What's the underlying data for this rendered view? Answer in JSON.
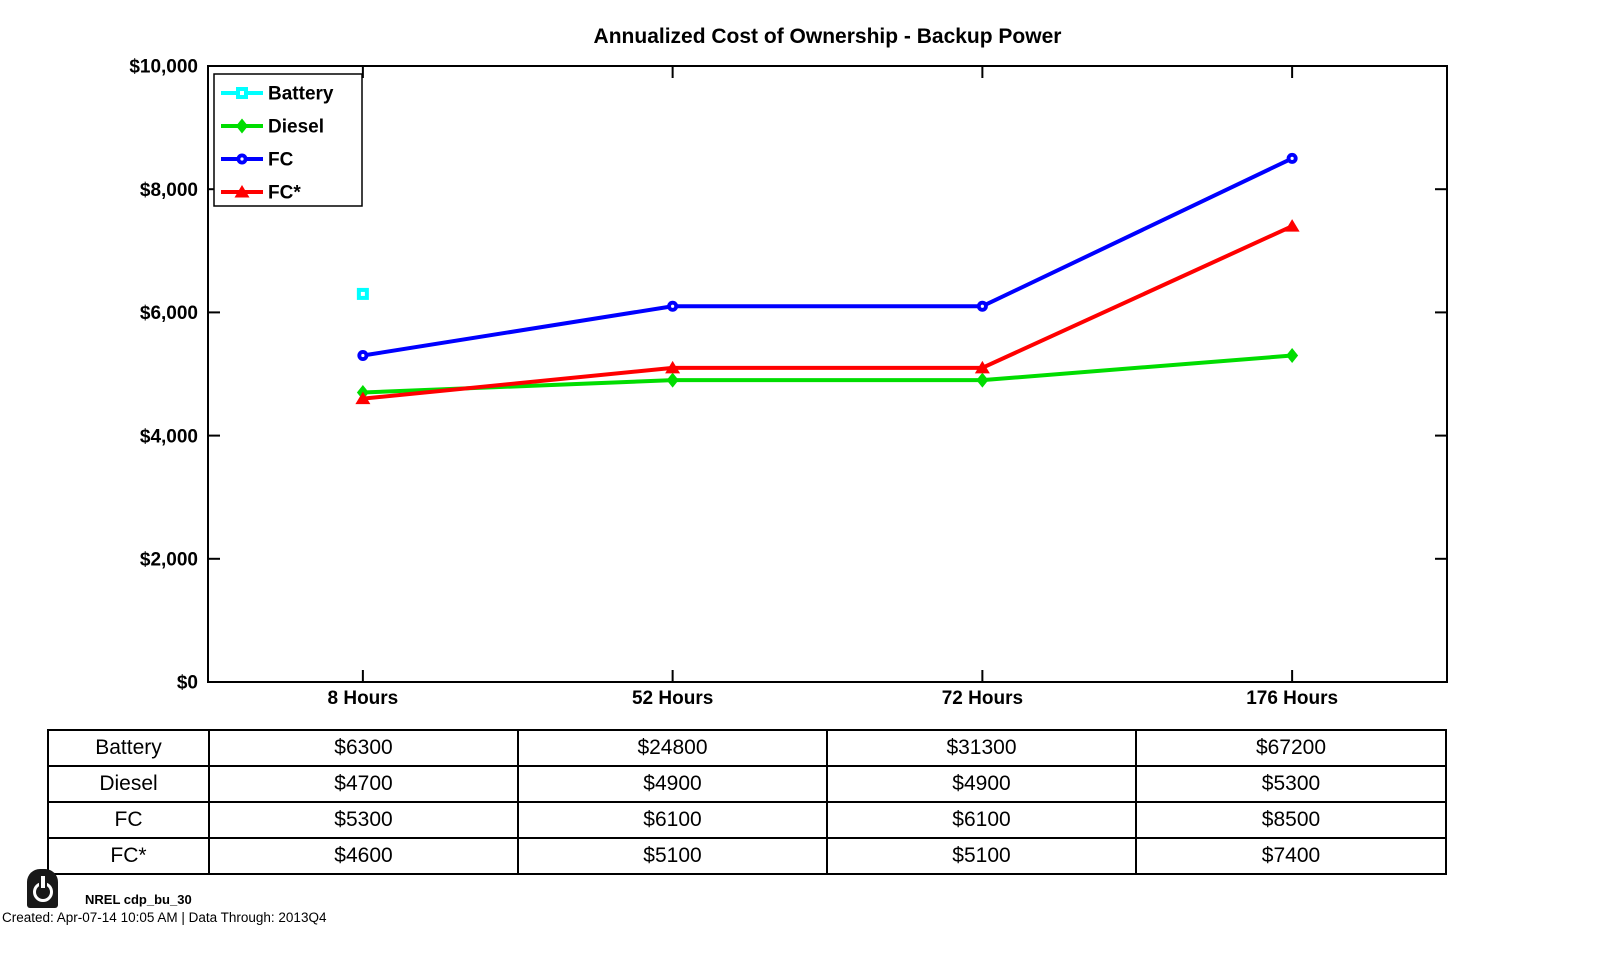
{
  "title": "Annualized Cost of Ownership - Backup Power",
  "chart_data": {
    "type": "line",
    "title": "Annualized Cost of Ownership - Backup Power",
    "categories": [
      "8 Hours",
      "52 Hours",
      "72 Hours",
      "176 Hours"
    ],
    "series": [
      {
        "name": "Battery",
        "color": "#00FFFF",
        "marker": "square",
        "values": [
          6300,
          24800,
          31300,
          67200
        ]
      },
      {
        "name": "Diesel",
        "color": "#00DD00",
        "marker": "diamond",
        "values": [
          4700,
          4900,
          4900,
          5300
        ]
      },
      {
        "name": "FC",
        "color": "#0000FF",
        "marker": "circle",
        "values": [
          5300,
          6100,
          6100,
          8500
        ]
      },
      {
        "name": "FC*",
        "color": "#FF0000",
        "marker": "triangle",
        "values": [
          4600,
          5100,
          5100,
          7400
        ]
      }
    ],
    "xlabel": "",
    "ylabel": "",
    "ylim": [
      0,
      10000
    ],
    "yticks": [
      {
        "value": 0,
        "label": "$0"
      },
      {
        "value": 2000,
        "label": "$2,000"
      },
      {
        "value": 4000,
        "label": "$4,000"
      },
      {
        "value": 6000,
        "label": "$6,000"
      },
      {
        "value": 8000,
        "label": "$8,000"
      },
      {
        "value": 10000,
        "label": "$10,000"
      }
    ],
    "grid": false,
    "legend_position": "top-left",
    "clip_note": "values above ylim are not drawn on the plot"
  },
  "table": {
    "rows": [
      {
        "label": "Battery",
        "values": [
          "$6300",
          "$24800",
          "$31300",
          "$67200"
        ]
      },
      {
        "label": "Diesel",
        "values": [
          "$4700",
          "$4900",
          "$4900",
          "$5300"
        ]
      },
      {
        "label": "FC",
        "values": [
          "$5300",
          "$6100",
          "$6100",
          "$8500"
        ]
      },
      {
        "label": "FC*",
        "values": [
          "$4600",
          "$5100",
          "$5100",
          "$7400"
        ]
      }
    ]
  },
  "footer": {
    "power_icon": "power",
    "source_label": "NREL cdp_bu_30",
    "created_line": "Created: Apr-07-14 10:05 AM | Data Through: 2013Q4"
  },
  "colors": {
    "axis": "#000000",
    "background": "#ffffff"
  }
}
